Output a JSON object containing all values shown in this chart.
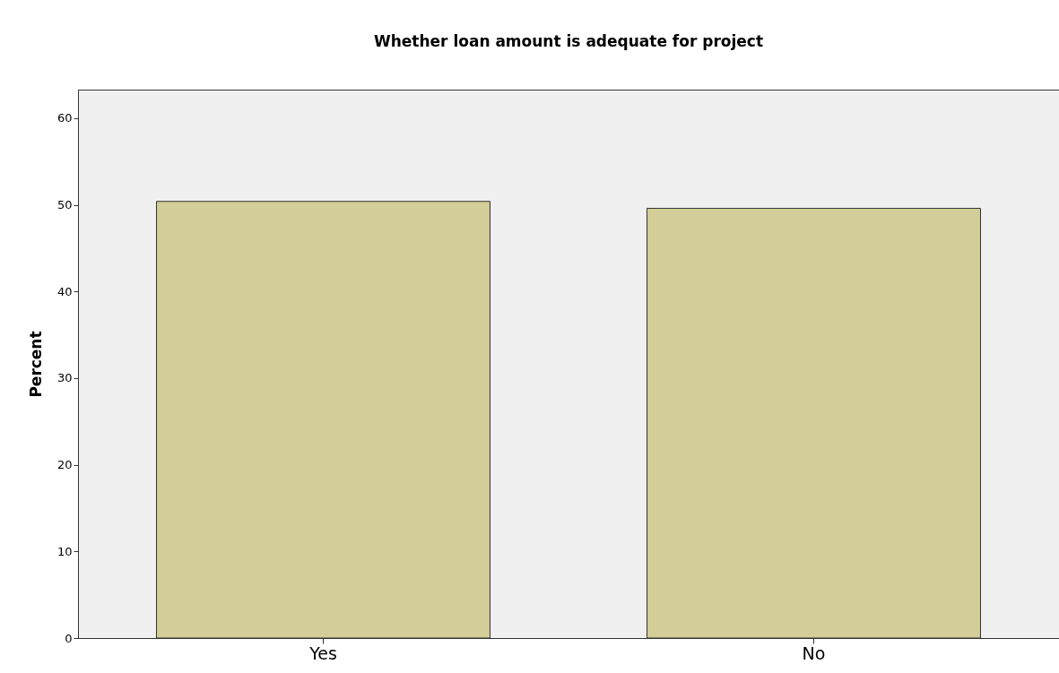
{
  "chart_data": {
    "type": "bar",
    "title": "Whether loan amount is adequate for project",
    "ylabel": "Percent",
    "categories": [
      "Yes",
      "No"
    ],
    "values": [
      50.4,
      49.6
    ],
    "color": "#d3cd98",
    "ylim": [
      0,
      63.3
    ],
    "yticks": [
      0,
      10,
      20,
      30,
      40,
      50,
      60
    ],
    "grid": false,
    "legend": false
  }
}
